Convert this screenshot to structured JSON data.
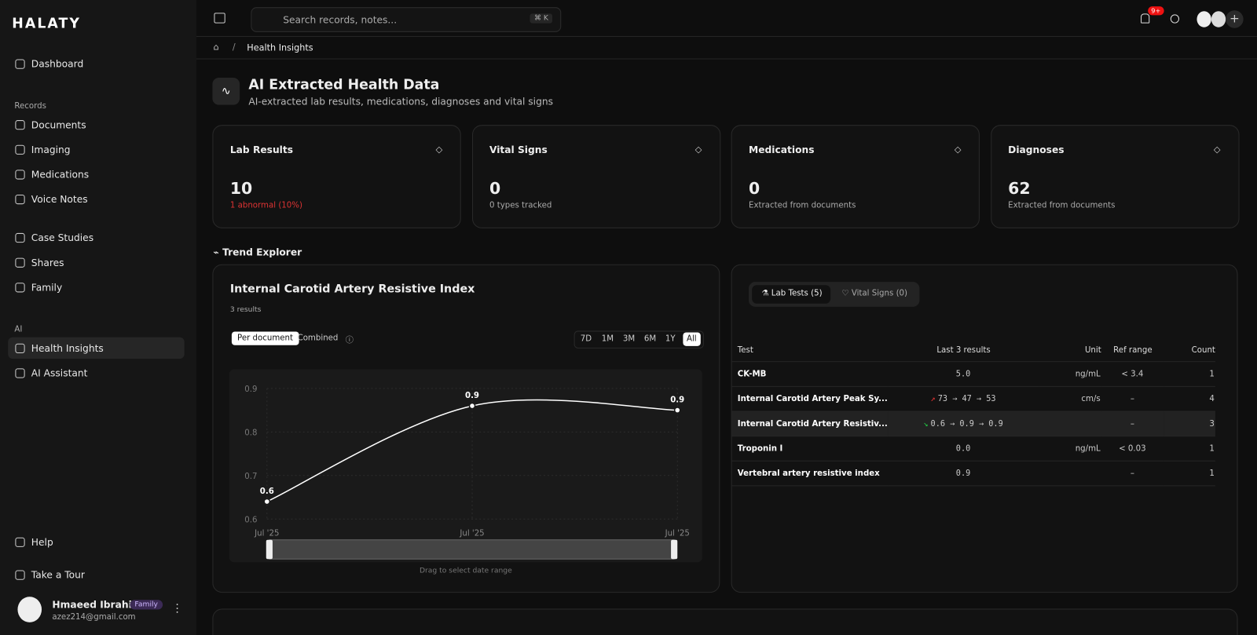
{
  "brand": "HALATY",
  "sidebar": {
    "top": [
      "Dashboard"
    ],
    "groups": [
      {
        "label": "Records",
        "items": [
          "Documents",
          "Imaging",
          "Medications",
          "Voice Notes"
        ]
      },
      {
        "items": [
          "Case Studies",
          "Shares",
          "Family"
        ]
      },
      {
        "label": "AI",
        "items": [
          "Health Insights",
          "AI Assistant"
        ]
      }
    ],
    "bottom": [
      "Help",
      "Take a Tour"
    ],
    "user": {
      "name": "Hmaeed Ibrahim",
      "badge": "Family",
      "email": "azez214@gmail.com"
    }
  },
  "topbar": {
    "search": "Search records, notes...",
    "shortcut": "⌘ K",
    "notifications": "9+"
  },
  "breadcrumb": "Health Insights",
  "header": {
    "title": "AI Extracted Health Data",
    "subtitle": "AI-extracted lab results, medications, diagnoses and vital signs"
  },
  "stats": [
    {
      "label": "Lab Results",
      "value": "10",
      "note": "1 abnormal (10%)"
    },
    {
      "label": "Vital Signs",
      "value": "0",
      "note": "0 types tracked"
    },
    {
      "label": "Medications",
      "value": "0",
      "note": "Extracted from documents"
    },
    {
      "label": "Diagnoses",
      "value": "62",
      "note": "Extracted from documents"
    }
  ],
  "section": "Trend Explorer",
  "chart_data": {
    "type": "line",
    "title": "Internal Carotid Artery Resistive Index",
    "subtitle": "3 results",
    "modes": [
      "Per document",
      "Combined"
    ],
    "ranges": [
      "7D",
      "1M",
      "3M",
      "6M",
      "1Y",
      "All"
    ],
    "categories": [
      "Jul '25",
      "Jul '25",
      "Jul '25"
    ],
    "values": [
      0.64,
      0.86,
      0.85
    ],
    "value_labels": [
      "0.6",
      "0.9",
      "0.9"
    ],
    "ylim": [
      0.6,
      0.9
    ],
    "yticks": [
      0.6,
      0.7,
      0.8,
      0.9
    ],
    "grid": true,
    "color": "#ffffff",
    "hint": "Drag to select date range"
  },
  "table": {
    "tabs": [
      "Lab Tests (5)",
      "Vital Signs (0)"
    ],
    "columns": [
      "Test",
      "Last 3 results",
      "Unit",
      "Ref range",
      "Count"
    ],
    "rows": [
      [
        "CK-MB",
        "5.0",
        "ng/mL",
        "< 3.4",
        "1"
      ],
      [
        "Internal Carotid Artery Peak Sy...",
        "73 → 47 → 53",
        "cm/s",
        "–",
        "4"
      ],
      [
        "Internal Carotid Artery Resistiv...",
        "0.6 → 0.9 → 0.9",
        null,
        "–",
        "3"
      ],
      [
        "Troponin I",
        "0.0",
        "ng/mL",
        "< 0.03",
        "1"
      ],
      [
        "Vertebral artery resistive index",
        "0.9",
        null,
        "–",
        "1"
      ]
    ]
  }
}
